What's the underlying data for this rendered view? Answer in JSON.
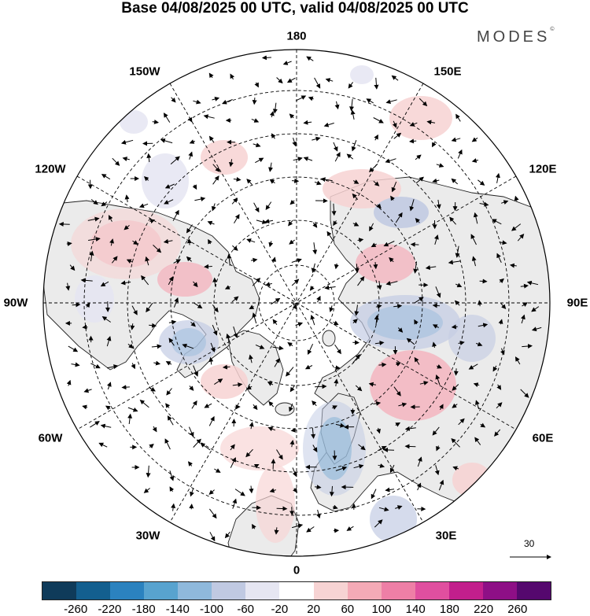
{
  "title": "Base 04/08/2025 00 UTC, valid 04/08/2025 00 UTC",
  "brand": "MODES",
  "brand_mark": "©",
  "longitude_labels": [
    "180",
    "150E",
    "120E",
    "90E",
    "60E",
    "30E",
    "0",
    "30W",
    "60W",
    "90W",
    "120W",
    "150W"
  ],
  "legend": {
    "ticks": [
      "-260",
      "-220",
      "-180",
      "-140",
      "-100",
      "-60",
      "-20",
      "20",
      "60",
      "100",
      "140",
      "180",
      "220",
      "260"
    ],
    "colors": [
      "#0f3b5a",
      "#135f8f",
      "#2b82bf",
      "#58a3cf",
      "#8fb9dc",
      "#c0c9e2",
      "#e6e6f2",
      "#ffffff",
      "#f7d3d3",
      "#f4aab6",
      "#ee7fa6",
      "#e04f9f",
      "#c21f8c",
      "#8e0f86",
      "#55086e"
    ]
  },
  "reference_vector": {
    "label": "30"
  },
  "colors": {
    "land": "#ebebeb",
    "ocean": "#ffffff",
    "coast": "#222222",
    "grid": "#000000"
  }
}
